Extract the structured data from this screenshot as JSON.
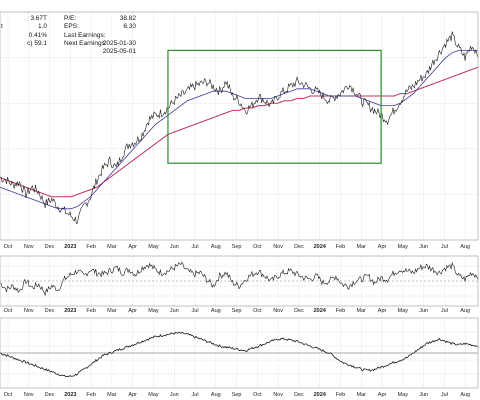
{
  "stats_left": [
    {
      "value": "3.67T"
    },
    {
      "value": "1.0"
    },
    {
      "value": "0.41%"
    },
    {
      "value": "59.1"
    }
  ],
  "stats_left_labels": [
    "",
    "t",
    "",
    "c)"
  ],
  "stats_right": [
    {
      "label": "P/E:",
      "value": "38.82"
    },
    {
      "label": "EPS:",
      "value": "6.30"
    },
    {
      "label": "Last Earnings:",
      "value": "2025-01-30"
    },
    {
      "label": "Next Earnings:",
      "value": "2025-05-01"
    }
  ],
  "colors": {
    "price": "#1a1a1a",
    "ma_short": "#3b3ba0",
    "ma_long": "#c0305a",
    "box": "#2e8b2e",
    "grid": "#cccccc",
    "indicator": "#1a1a1a"
  },
  "chart_data": {
    "type": "line",
    "x_ticks": [
      "Oct",
      "Nov",
      "Dec",
      "2023",
      "Feb",
      "Mar",
      "Apr",
      "May",
      "Jun",
      "Jul",
      "Aug",
      "Sep",
      "Oct",
      "Nov",
      "Dec",
      "2024",
      "Feb",
      "Mar",
      "Apr",
      "May",
      "Jun",
      "Jul",
      "Aug"
    ],
    "bold_ticks": [
      "2023",
      "2024"
    ],
    "series": [
      {
        "key": "price",
        "values": [
          56,
          55,
          53,
          54,
          49,
          52,
          50,
          45,
          47,
          44,
          42,
          40,
          38,
          44,
          48,
          55,
          60,
          63,
          60,
          66,
          70,
          71,
          74,
          80,
          82,
          83,
          85,
          88,
          90,
          92,
          94,
          95,
          96,
          94,
          92,
          96,
          90,
          88,
          84,
          86,
          90,
          88,
          86,
          90,
          92,
          94,
          96,
          95,
          93,
          92,
          90,
          88,
          90,
          92,
          95,
          92,
          88,
          86,
          84,
          82,
          80,
          84,
          88,
          92,
          94,
          97,
          99,
          104,
          108,
          112,
          115,
          110,
          106,
          111,
          108
        ]
      },
      {
        "key": "ma_short",
        "values": [
          52,
          51,
          50,
          49,
          48,
          47,
          46,
          45,
          44,
          43,
          43,
          43,
          44,
          46,
          48,
          51,
          54,
          57,
          60,
          63,
          66,
          69,
          72,
          75,
          78,
          80,
          82,
          84,
          86,
          88,
          89,
          90,
          91,
          92,
          92,
          92,
          91,
          90,
          89,
          89,
          89,
          89,
          89,
          90,
          91,
          92,
          93,
          93,
          93,
          92,
          91,
          90,
          90,
          90,
          90,
          90,
          89,
          88,
          87,
          86,
          86,
          86,
          87,
          89,
          91,
          94,
          97,
          100,
          103,
          106,
          108,
          109,
          109,
          109,
          109
        ]
      },
      {
        "key": "ma_long",
        "values": [
          56,
          55,
          54,
          53,
          52,
          51,
          50,
          49,
          48,
          48,
          48,
          48,
          49,
          50,
          51,
          52,
          54,
          56,
          58,
          60,
          62,
          64,
          66,
          68,
          70,
          72,
          74,
          75,
          76,
          77,
          78,
          79,
          80,
          81,
          82,
          83,
          84,
          84,
          85,
          85,
          86,
          86,
          87,
          87,
          88,
          88,
          89,
          89,
          90,
          90,
          90,
          90,
          90,
          90,
          90,
          90,
          90,
          90,
          90,
          90,
          90,
          90,
          91,
          91,
          92,
          93,
          94,
          95,
          96,
          97,
          98,
          99,
          100,
          101,
          102
        ]
      },
      {
        "key": "rsi",
        "values": [
          48,
          40,
          44,
          38,
          50,
          42,
          46,
          36,
          44,
          40,
          52,
          58,
          62,
          56,
          64,
          60,
          58,
          62,
          66,
          60,
          64,
          58,
          66,
          70,
          64,
          60,
          62,
          66,
          70,
          62,
          58,
          60,
          52,
          44,
          56,
          60,
          48,
          44,
          52,
          58,
          62,
          56,
          50,
          56,
          60,
          62,
          58,
          54,
          52,
          56,
          48,
          50,
          56,
          46,
          44,
          50,
          52,
          56,
          48,
          54,
          52,
          60,
          64,
          62,
          60,
          66,
          68,
          64,
          60,
          66,
          68,
          56,
          52,
          60,
          56
        ]
      },
      {
        "key": "momentum",
        "values": [
          50,
          48,
          46,
          44,
          42,
          40,
          38,
          36,
          34,
          32,
          30,
          30,
          32,
          36,
          40,
          44,
          48,
          50,
          52,
          54,
          56,
          58,
          60,
          62,
          64,
          65,
          66,
          67,
          67,
          66,
          64,
          62,
          60,
          58,
          56,
          55,
          54,
          53,
          52,
          54,
          56,
          58,
          60,
          62,
          62,
          61,
          60,
          58,
          56,
          54,
          52,
          50,
          46,
          42,
          40,
          38,
          36,
          35,
          36,
          38,
          40,
          42,
          44,
          46,
          50,
          54,
          58,
          60,
          62,
          60,
          58,
          57,
          58,
          57,
          56
        ]
      }
    ],
    "price_range": [
      30,
      125
    ],
    "rsi_range": [
      20,
      80
    ],
    "momentum_range": [
      20,
      80
    ],
    "annotation": {
      "type": "rectangle",
      "x_start_index": 26,
      "x_end_index": 59,
      "y_low": 62,
      "y_high": 109
    },
    "grid": true
  }
}
